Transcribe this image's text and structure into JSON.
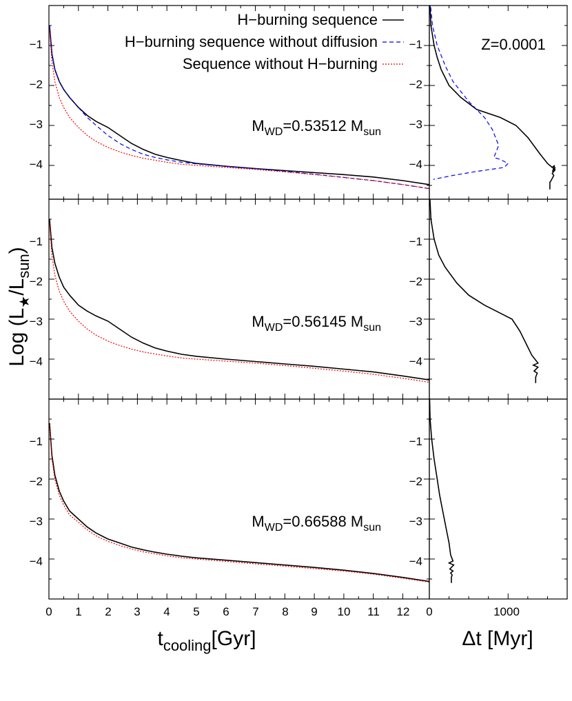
{
  "figure": {
    "ylabel": {
      "main": "Log (L",
      "sub1": "★",
      "mid": "/L",
      "sub2": "sun",
      "end": ")"
    },
    "xlabel_left": {
      "main": "t",
      "sub": "cooling",
      "end": "[Gyr]"
    },
    "xlabel_right": "Δt [Myr]",
    "z_label": "Z=0.0001",
    "legend": [
      {
        "label": "H−burning sequence",
        "color": "#000000",
        "style": "solid"
      },
      {
        "label": "H−burning sequence without diffusion",
        "color": "#0000ee",
        "style": "dashed"
      },
      {
        "label": "Sequence without H−burning",
        "color": "#ee0000",
        "style": "dotted"
      }
    ],
    "panel_labels": [
      {
        "pre": "M",
        "sub": "WD",
        "mid": "=0.53512 M",
        "sub2": "sun"
      },
      {
        "pre": "M",
        "sub": "WD",
        "mid": "=0.56145 M",
        "sub2": "sun"
      },
      {
        "pre": "M",
        "sub": "WD",
        "mid": "=0.66588 M",
        "sub2": "sun"
      }
    ],
    "x_ticks": [
      "0",
      "1",
      "2",
      "3",
      "4",
      "5",
      "6",
      "7",
      "8",
      "9",
      "10",
      "11",
      "12"
    ],
    "dt_ticks": [
      "0",
      "1000"
    ],
    "y_ticks": [
      "−1",
      "−2",
      "−3",
      "−4"
    ]
  },
  "chart_data": [
    {
      "type": "line",
      "panel": "top-left",
      "xlim": [
        0,
        12.9
      ],
      "ylim": [
        -4.6,
        0.3
      ],
      "series": [
        {
          "name": "H−burning sequence",
          "color": "#000000",
          "style": "solid",
          "x": [
            0.02,
            0.1,
            0.2,
            0.35,
            0.5,
            0.7,
            1.0,
            1.3,
            1.6,
            2.0,
            2.4,
            2.8,
            3.2,
            3.6,
            4.0,
            4.5,
            5.0,
            6.0,
            7.0,
            8.0,
            9.0,
            10.0,
            11.0,
            12.0,
            12.9
          ],
          "y": [
            -0.5,
            -1.2,
            -1.6,
            -1.9,
            -2.1,
            -2.3,
            -2.55,
            -2.75,
            -2.9,
            -3.05,
            -3.25,
            -3.45,
            -3.6,
            -3.72,
            -3.8,
            -3.88,
            -3.95,
            -4.02,
            -4.08,
            -4.13,
            -4.18,
            -4.23,
            -4.29,
            -4.38,
            -4.48
          ]
        },
        {
          "name": "H−burning sequence without diffusion",
          "color": "#0000ee",
          "style": "dashed",
          "x": [
            0.02,
            0.1,
            0.2,
            0.35,
            0.5,
            0.7,
            1.0,
            1.3,
            1.6,
            2.0,
            2.4,
            2.8,
            3.2,
            3.6,
            4.0,
            4.5,
            5.0,
            6.0,
            7.0,
            8.0,
            9.0,
            10.0,
            11.0,
            12.0,
            12.9
          ],
          "y": [
            -0.5,
            -1.2,
            -1.6,
            -1.9,
            -2.1,
            -2.3,
            -2.55,
            -2.8,
            -3.0,
            -3.25,
            -3.45,
            -3.6,
            -3.72,
            -3.8,
            -3.86,
            -3.92,
            -3.96,
            -4.02,
            -4.08,
            -4.15,
            -4.22,
            -4.3,
            -4.38,
            -4.48,
            -4.58
          ]
        },
        {
          "name": "Sequence without H−burning",
          "color": "#ee0000",
          "style": "dotted",
          "x": [
            0.02,
            0.1,
            0.2,
            0.35,
            0.5,
            0.7,
            1.0,
            1.3,
            1.6,
            2.0,
            2.4,
            2.8,
            3.2,
            3.6,
            4.0,
            4.5,
            5.0,
            6.0,
            7.0,
            8.0,
            9.0,
            10.0,
            11.0,
            12.0,
            12.9
          ],
          "y": [
            -0.6,
            -1.4,
            -1.9,
            -2.3,
            -2.55,
            -2.8,
            -3.05,
            -3.25,
            -3.4,
            -3.55,
            -3.66,
            -3.75,
            -3.82,
            -3.87,
            -3.92,
            -3.97,
            -4.0,
            -4.05,
            -4.1,
            -4.16,
            -4.23,
            -4.3,
            -4.38,
            -4.48,
            -4.58
          ]
        }
      ]
    },
    {
      "type": "line",
      "panel": "top-right",
      "xlim": [
        0,
        1750
      ],
      "ylim": [
        -4.6,
        0.3
      ],
      "series": [
        {
          "name": "H−burning sequence",
          "color": "#000000",
          "style": "solid",
          "x": [
            0,
            20,
            60,
            100,
            150,
            250,
            400,
            600,
            900,
            1100,
            1250,
            1400,
            1500,
            1530,
            1560,
            1590,
            1570,
            1600,
            1560,
            1600,
            1560,
            1580,
            1540,
            1530,
            1530
          ],
          "y": [
            0.3,
            -0.5,
            -1.0,
            -1.3,
            -1.6,
            -2.0,
            -2.3,
            -2.6,
            -2.8,
            -3.0,
            -3.3,
            -3.7,
            -3.95,
            -4.0,
            -4.05,
            -4.0,
            -4.1,
            -4.05,
            -4.15,
            -4.1,
            -4.2,
            -4.25,
            -4.4,
            -4.42,
            -4.6
          ]
        },
        {
          "name": "H−burning sequence without diffusion",
          "color": "#0000ee",
          "style": "dashed",
          "x": [
            0,
            40,
            100,
            200,
            300,
            400,
            500,
            600,
            700,
            800,
            880,
            820,
            900,
            1000,
            950,
            600,
            300,
            50
          ],
          "y": [
            0.3,
            -0.5,
            -1.0,
            -1.5,
            -1.9,
            -2.15,
            -2.4,
            -2.6,
            -2.8,
            -3.1,
            -3.5,
            -3.8,
            -3.85,
            -3.95,
            -4.05,
            -4.15,
            -4.25,
            -4.35
          ]
        }
      ]
    },
    {
      "type": "line",
      "panel": "middle-left",
      "xlim": [
        0,
        12.9
      ],
      "ylim": [
        -4.6,
        0.3
      ],
      "series": [
        {
          "name": "H−burning sequence",
          "color": "#000000",
          "style": "solid",
          "x": [
            0.02,
            0.1,
            0.2,
            0.35,
            0.5,
            0.7,
            1.0,
            1.3,
            1.6,
            2.0,
            2.4,
            2.8,
            3.2,
            3.6,
            4.0,
            4.5,
            5.0,
            6.0,
            7.0,
            8.0,
            9.0,
            10.0,
            11.0,
            12.0,
            12.9
          ],
          "y": [
            -0.5,
            -1.2,
            -1.6,
            -1.95,
            -2.2,
            -2.4,
            -2.65,
            -2.8,
            -2.92,
            -3.05,
            -3.25,
            -3.45,
            -3.6,
            -3.72,
            -3.8,
            -3.88,
            -3.93,
            -4.0,
            -4.06,
            -4.12,
            -4.18,
            -4.25,
            -4.32,
            -4.42,
            -4.52
          ]
        },
        {
          "name": "Sequence without H−burning",
          "color": "#ee0000",
          "style": "dotted",
          "x": [
            0.02,
            0.1,
            0.2,
            0.35,
            0.5,
            0.7,
            1.0,
            1.3,
            1.6,
            2.0,
            2.4,
            2.8,
            3.2,
            3.6,
            4.0,
            4.5,
            5.0,
            6.0,
            7.0,
            8.0,
            9.0,
            10.0,
            11.0,
            12.0,
            12.9
          ],
          "y": [
            -0.6,
            -1.4,
            -1.9,
            -2.3,
            -2.55,
            -2.8,
            -3.05,
            -3.25,
            -3.4,
            -3.55,
            -3.66,
            -3.75,
            -3.82,
            -3.87,
            -3.92,
            -3.97,
            -4.0,
            -4.05,
            -4.1,
            -4.16,
            -4.23,
            -4.3,
            -4.38,
            -4.48,
            -4.58
          ]
        }
      ]
    },
    {
      "type": "line",
      "panel": "middle-right",
      "xlim": [
        0,
        1750
      ],
      "ylim": [
        -4.6,
        0.3
      ],
      "series": [
        {
          "name": "H−burning sequence",
          "color": "#000000",
          "style": "solid",
          "x": [
            0,
            20,
            60,
            120,
            200,
            350,
            500,
            700,
            900,
            1050,
            1150,
            1250,
            1300,
            1340,
            1380,
            1320,
            1380,
            1330,
            1370,
            1350,
            1350
          ],
          "y": [
            0.3,
            -0.5,
            -1.0,
            -1.4,
            -1.7,
            -2.1,
            -2.4,
            -2.65,
            -2.85,
            -3.0,
            -3.3,
            -3.7,
            -3.9,
            -4.0,
            -4.1,
            -4.15,
            -4.2,
            -4.3,
            -4.35,
            -4.45,
            -4.6
          ]
        }
      ]
    },
    {
      "type": "line",
      "panel": "bottom-left",
      "xlim": [
        0,
        12.9
      ],
      "ylim": [
        -4.6,
        0.3
      ],
      "series": [
        {
          "name": "H−burning sequence",
          "color": "#000000",
          "style": "solid",
          "x": [
            0.02,
            0.1,
            0.2,
            0.35,
            0.5,
            0.7,
            1.0,
            1.3,
            1.6,
            2.0,
            2.4,
            2.8,
            3.2,
            3.6,
            4.0,
            4.5,
            5.0,
            6.0,
            7.0,
            8.0,
            9.0,
            10.0,
            11.0,
            12.0,
            12.9
          ],
          "y": [
            -0.6,
            -1.4,
            -1.9,
            -2.3,
            -2.55,
            -2.8,
            -3.0,
            -3.2,
            -3.35,
            -3.5,
            -3.6,
            -3.7,
            -3.77,
            -3.83,
            -3.88,
            -3.93,
            -3.97,
            -4.03,
            -4.09,
            -4.15,
            -4.21,
            -4.28,
            -4.36,
            -4.46,
            -4.56
          ]
        },
        {
          "name": "Sequence without H−burning",
          "color": "#ee0000",
          "style": "dotted",
          "x": [
            0.02,
            0.1,
            0.2,
            0.35,
            0.5,
            0.7,
            1.0,
            1.3,
            1.6,
            2.0,
            2.4,
            2.8,
            3.2,
            3.6,
            4.0,
            4.5,
            5.0,
            6.0,
            7.0,
            8.0,
            9.0,
            10.0,
            11.0,
            12.0,
            12.9
          ],
          "y": [
            -0.65,
            -1.5,
            -2.0,
            -2.4,
            -2.65,
            -2.9,
            -3.08,
            -3.27,
            -3.42,
            -3.56,
            -3.66,
            -3.75,
            -3.82,
            -3.87,
            -3.92,
            -3.97,
            -4.0,
            -4.06,
            -4.12,
            -4.18,
            -4.24,
            -4.3,
            -4.38,
            -4.48,
            -4.58
          ]
        }
      ]
    },
    {
      "type": "line",
      "panel": "bottom-right",
      "xlim": [
        0,
        1750
      ],
      "ylim": [
        -4.6,
        0.3
      ],
      "series": [
        {
          "name": "H−burning sequence",
          "color": "#000000",
          "style": "solid",
          "x": [
            0,
            10,
            30,
            60,
            100,
            130,
            160,
            190,
            220,
            250,
            270,
            300,
            250,
            310,
            260,
            300,
            270,
            290,
            280,
            280
          ],
          "y": [
            0.3,
            -0.5,
            -1.0,
            -1.5,
            -2.0,
            -2.4,
            -2.7,
            -3.0,
            -3.3,
            -3.6,
            -3.9,
            -4.05,
            -4.1,
            -4.15,
            -4.25,
            -4.3,
            -4.35,
            -4.4,
            -4.45,
            -4.6
          ]
        }
      ]
    }
  ]
}
